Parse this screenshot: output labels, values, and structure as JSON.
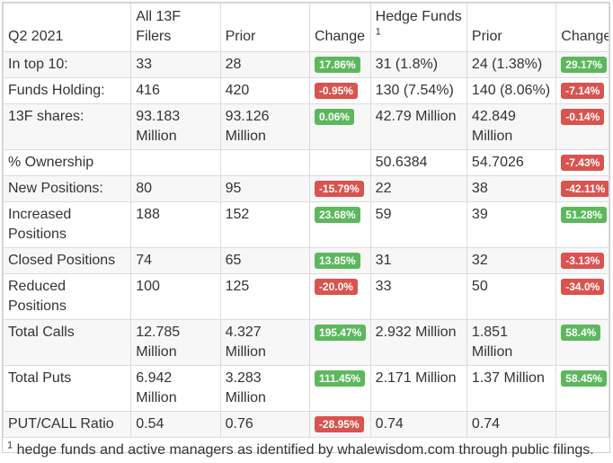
{
  "header": {
    "col0": "Q2 2021",
    "col1": "All 13F Filers",
    "col2": "Prior",
    "col3": "Change",
    "col4": "Hedge Funds",
    "col4_sup": "1",
    "col5": "Prior",
    "col6": "Change"
  },
  "rows": [
    {
      "label": "In top 10:",
      "all": "33",
      "prior": "28",
      "change": "17.86%",
      "change_sign": "pos",
      "hf": "31 (1.8%)",
      "hf_prior": "24 (1.38%)",
      "hf_change": "29.17%",
      "hf_change_sign": "pos"
    },
    {
      "label": "Funds Holding:",
      "all": "416",
      "prior": "420",
      "change": "-0.95%",
      "change_sign": "neg",
      "hf": "130 (7.54%)",
      "hf_prior": "140 (8.06%)",
      "hf_change": "-7.14%",
      "hf_change_sign": "neg"
    },
    {
      "label": "13F shares:",
      "all": "93.183 Million",
      "prior": "93.126 Million",
      "change": "0.06%",
      "change_sign": "pos",
      "hf": "42.79 Million",
      "hf_prior": "42.849 Million",
      "hf_change": "-0.14%",
      "hf_change_sign": "neg"
    },
    {
      "label": "% Ownership",
      "all": "",
      "prior": "",
      "change": "",
      "change_sign": "",
      "hf": "50.6384",
      "hf_prior": "54.7026",
      "hf_change": "-7.43%",
      "hf_change_sign": "neg"
    },
    {
      "label": "New Positions:",
      "all": "80",
      "prior": "95",
      "change": "-15.79%",
      "change_sign": "neg",
      "hf": "22",
      "hf_prior": "38",
      "hf_change": "-42.11%",
      "hf_change_sign": "neg"
    },
    {
      "label": "Increased Positions",
      "all": "188",
      "prior": "152",
      "change": "23.68%",
      "change_sign": "pos",
      "hf": "59",
      "hf_prior": "39",
      "hf_change": "51.28%",
      "hf_change_sign": "pos"
    },
    {
      "label": "Closed Positions",
      "all": "74",
      "prior": "65",
      "change": "13.85%",
      "change_sign": "pos",
      "hf": "31",
      "hf_prior": "32",
      "hf_change": "-3.13%",
      "hf_change_sign": "neg"
    },
    {
      "label": "Reduced Positions",
      "all": "100",
      "prior": "125",
      "change": "-20.0%",
      "change_sign": "neg",
      "hf": "33",
      "hf_prior": "50",
      "hf_change": "-34.0%",
      "hf_change_sign": "neg"
    },
    {
      "label": "Total Calls",
      "all": "12.785 Million",
      "prior": "4.327 Million",
      "change": "195.47%",
      "change_sign": "pos",
      "hf": "2.932 Million",
      "hf_prior": "1.851 Million",
      "hf_change": "58.4%",
      "hf_change_sign": "pos"
    },
    {
      "label": "Total Puts",
      "all": "6.942 Million",
      "prior": "3.283 Million",
      "change": "111.45%",
      "change_sign": "pos",
      "hf": "2.171 Million",
      "hf_prior": "1.37 Million",
      "hf_change": "58.45%",
      "hf_change_sign": "pos"
    },
    {
      "label": "PUT/CALL Ratio",
      "all": "0.54",
      "prior": "0.76",
      "change": "-28.95%",
      "change_sign": "neg",
      "hf": "0.74",
      "hf_prior": "0.74",
      "hf_change": "",
      "hf_change_sign": ""
    }
  ],
  "footnote": {
    "sup": "1",
    "text": " hedge funds and active managers as identified by whalewisdom.com through public filings."
  },
  "colors": {
    "positive": "#5cb85c",
    "negative": "#d9534f"
  }
}
